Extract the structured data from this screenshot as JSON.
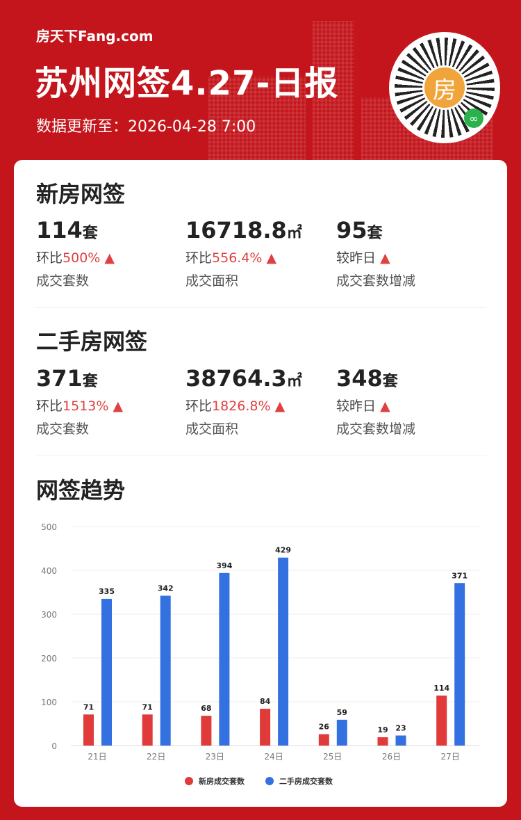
{
  "header": {
    "logo": "房天下Fang.com",
    "title": "苏州网签4.27-日报",
    "update_time": "数据更新至：2026-04-28 7:00",
    "qr_center": "房"
  },
  "new_house": {
    "title": "新房网签",
    "stats": [
      {
        "value": "114",
        "unit": "套",
        "change_label": "环比",
        "change": "500%",
        "arrow": "▲",
        "label": "成交套数"
      },
      {
        "value": "16718.8",
        "unit": "㎡",
        "change_label": "环比",
        "change": "556.4%",
        "arrow": "▲",
        "label": "成交面积"
      },
      {
        "value": "95",
        "unit": "套",
        "change_label": "较昨日",
        "change": "",
        "arrow": "▲",
        "label": "成交套数增减"
      }
    ]
  },
  "second_house": {
    "title": "二手房网签",
    "stats": [
      {
        "value": "371",
        "unit": "套",
        "change_label": "环比",
        "change": "1513%",
        "arrow": "▲",
        "label": "成交套数"
      },
      {
        "value": "38764.3",
        "unit": "㎡",
        "change_label": "环比",
        "change": "1826.8%",
        "arrow": "▲",
        "label": "成交面积"
      },
      {
        "value": "348",
        "unit": "套",
        "change_label": "较昨日",
        "change": "",
        "arrow": "▲",
        "label": "成交套数增减"
      }
    ]
  },
  "trend": {
    "title": "网签趋势"
  },
  "colors": {
    "background": "#c3151b",
    "up": "#e04040",
    "new": "#e03a3a",
    "second": "#3370e0"
  },
  "chart_data": {
    "type": "bar",
    "categories": [
      "21日",
      "22日",
      "23日",
      "24日",
      "25日",
      "26日",
      "27日"
    ],
    "series": [
      {
        "name": "新房成交套数",
        "values": [
          71,
          71,
          68,
          84,
          26,
          19,
          114
        ]
      },
      {
        "name": "二手房成交套数",
        "values": [
          335,
          342,
          394,
          429,
          59,
          23,
          371
        ]
      }
    ],
    "ylim": [
      0,
      500
    ],
    "yticks": [
      0,
      100,
      200,
      300,
      400,
      500
    ],
    "grid": true,
    "legend": "bottom"
  }
}
